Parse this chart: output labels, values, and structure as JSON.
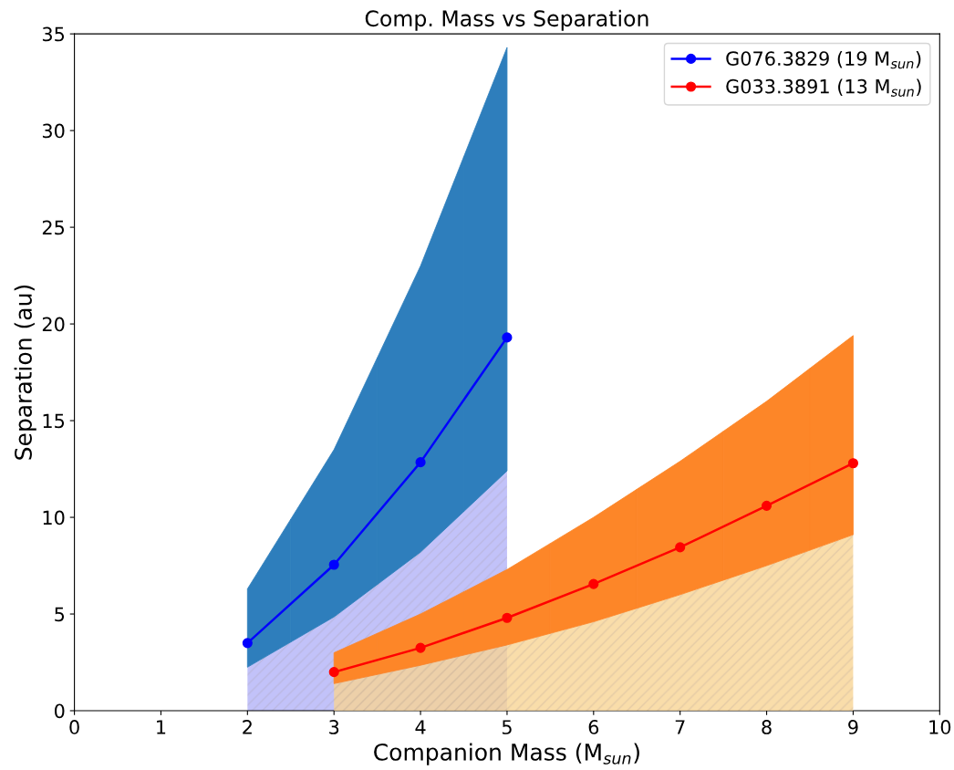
{
  "chart_data": {
    "type": "line",
    "title": "Comp. Mass vs Separation",
    "xlabel": "Companion Mass (M$_{sun}$)",
    "ylabel": "Separation (au)",
    "xlim": [
      0,
      10
    ],
    "xticks": [
      0,
      1,
      2,
      3,
      4,
      5,
      6,
      7,
      8,
      9,
      10
    ],
    "ylim": [
      0,
      35
    ],
    "yticks": [
      0,
      5,
      10,
      15,
      20,
      25,
      30,
      35
    ],
    "grid": false,
    "legend": "top right",
    "line_style": "solid",
    "series": [
      {
        "type": "area",
        "color": "#b3b3f8",
        "x": [
          2,
          3,
          4,
          5
        ],
        "values": [
          2.25,
          4.85,
          8.2,
          12.4
        ]
      },
      {
        "type": "area",
        "color": "#f8d495",
        "x": [
          3,
          4,
          5,
          6,
          7,
          8,
          9
        ],
        "values": [
          1.4,
          2.35,
          3.4,
          4.6,
          6.0,
          7.5,
          9.1
        ]
      },
      {
        "name": "G076.3829 (19 M$_{sun}$)",
        "marker": "circle",
        "color": "#0000ff",
        "colors": [
          "#2e7ebc",
          "#2e7ebc",
          "#2e7ebc",
          "#2e7ebc"
        ],
        "x": [
          2,
          3,
          4,
          5
        ],
        "values": [
          3.5,
          7.55,
          12.85,
          19.3
        ],
        "lower": [
          2.25,
          4.85,
          8.2,
          12.4
        ],
        "upper": [
          6.3,
          13.5,
          23.0,
          34.3
        ]
      },
      {
        "name": "G033.3891 (13 M$_{sun}$)",
        "marker": "circle",
        "color": "#ff0000",
        "colors": [
          "#fd8628",
          "#fd8628",
          "#fd8628",
          "#fd8628",
          "#fd8628",
          "#fd8628",
          "#fd8628"
        ],
        "x": [
          3,
          4,
          5,
          6,
          7,
          8,
          9
        ],
        "values": [
          2.0,
          3.25,
          4.8,
          6.55,
          8.45,
          10.6,
          12.8
        ],
        "lower": [
          1.4,
          2.35,
          3.4,
          4.6,
          6.0,
          7.5,
          9.1
        ],
        "upper": [
          3.0,
          5.0,
          7.3,
          10.0,
          12.9,
          16.0,
          19.4
        ]
      }
    ]
  }
}
